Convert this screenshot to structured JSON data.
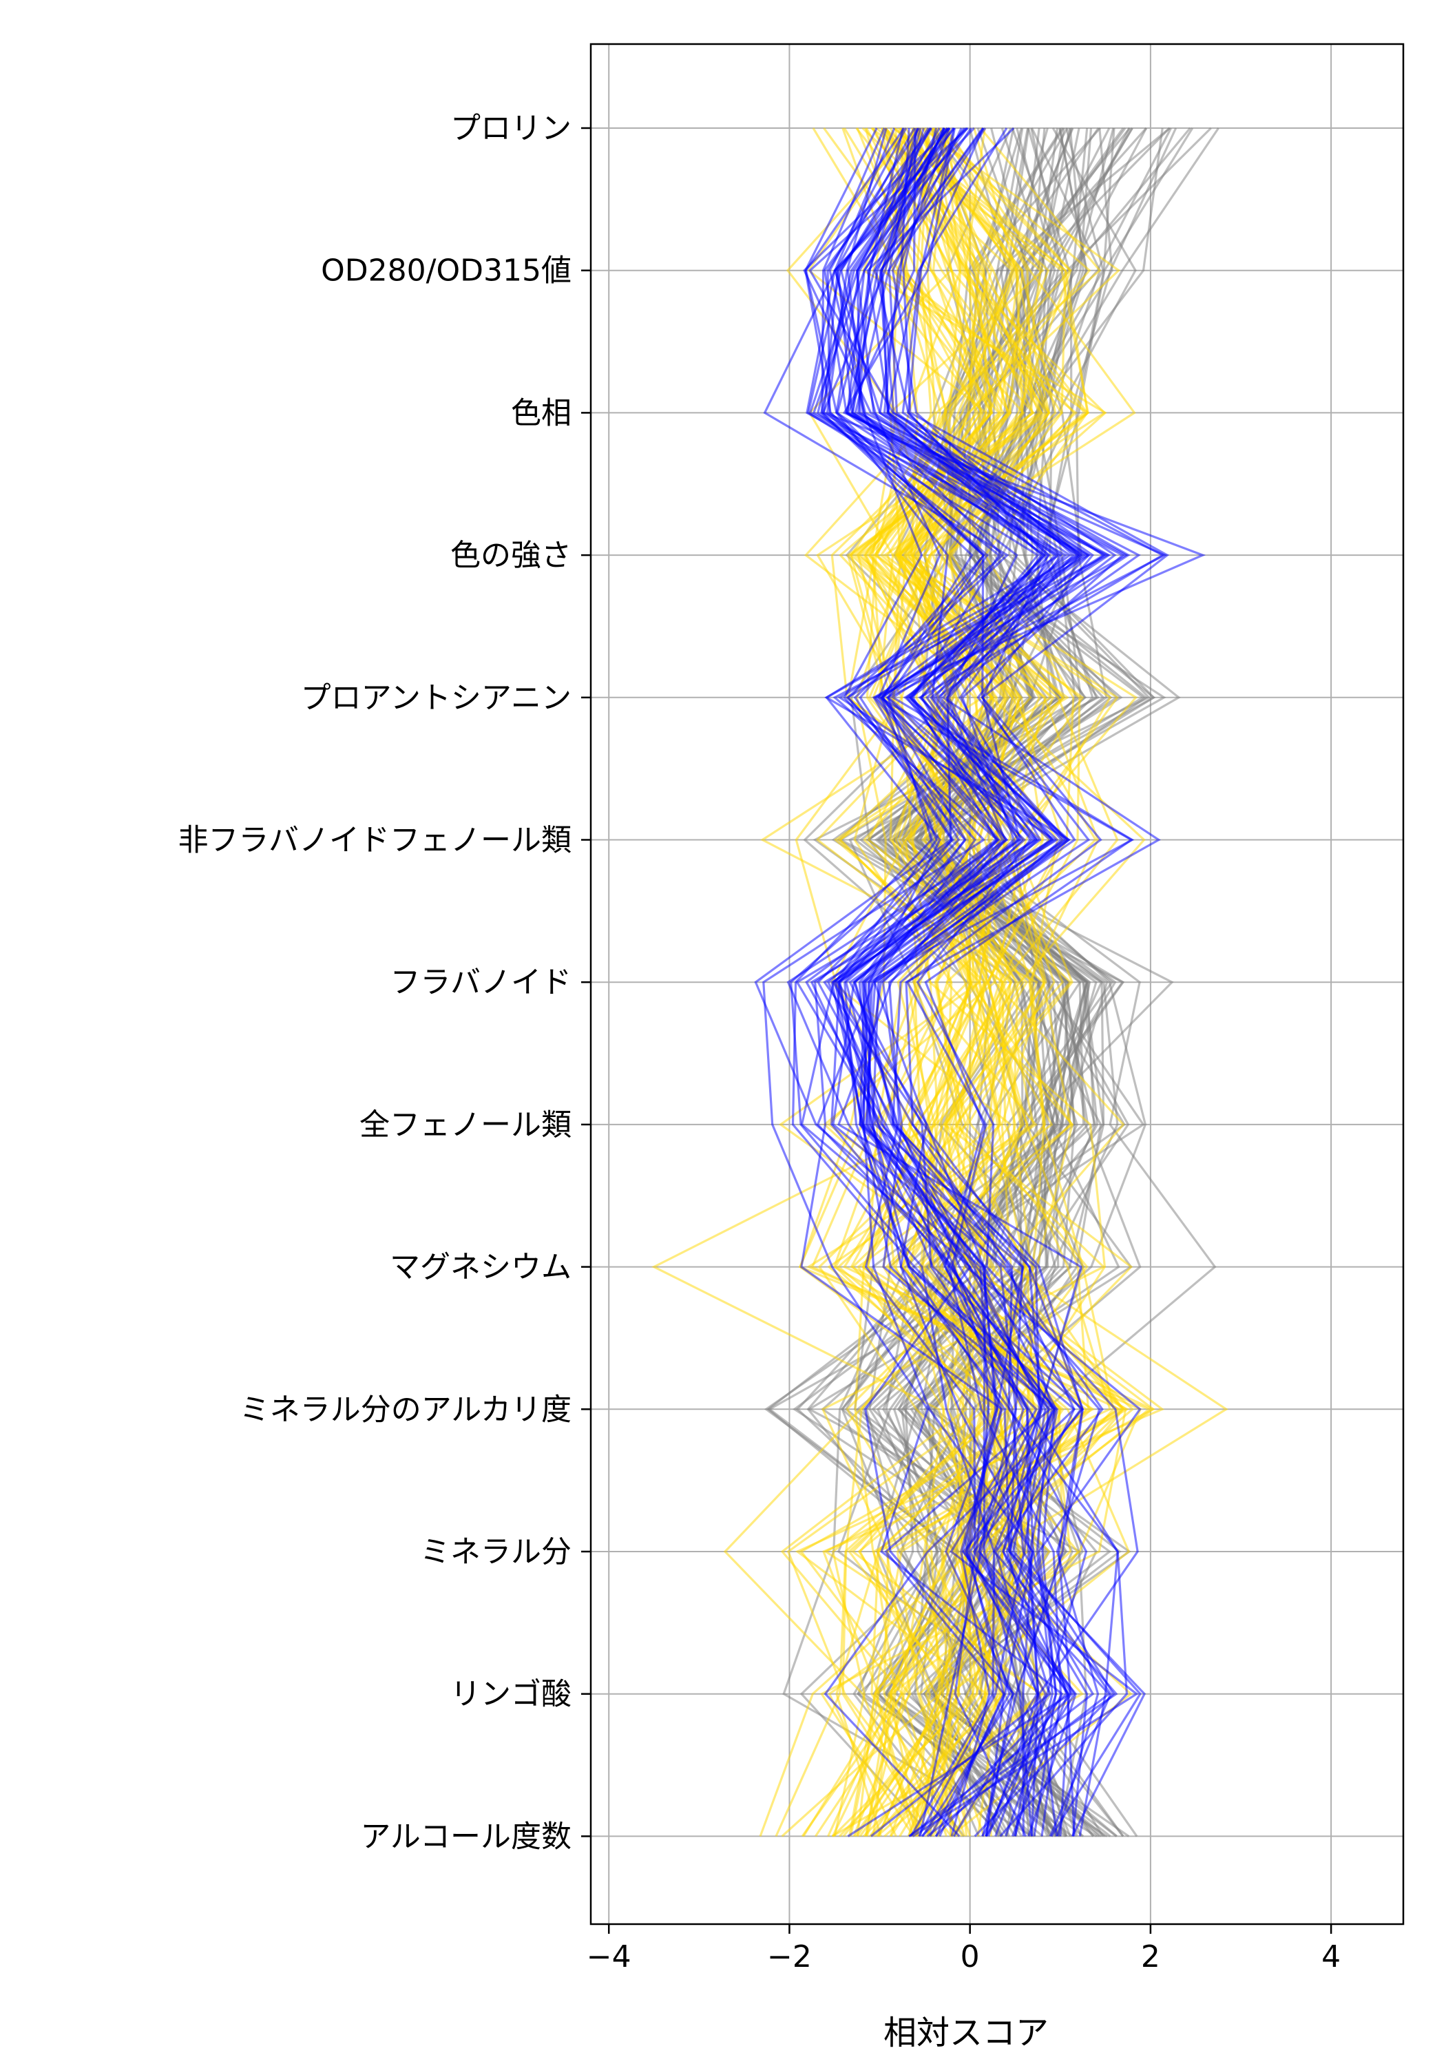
{
  "chart_data": {
    "type": "line",
    "subtype": "parallel-coordinates",
    "orientation": "horizontal",
    "xlabel": "相対スコア",
    "xlim": [
      -4.2,
      4.8
    ],
    "x_ticks": [
      -4,
      -2,
      0,
      2,
      4
    ],
    "x_tick_labels": [
      "−4",
      "−2",
      "0",
      "2",
      "4"
    ],
    "grid": true,
    "categories": [
      "プロリン",
      "OD280/OD315値",
      "色相",
      "色の強さ",
      "プロアントシアニン",
      "非フラバノイドフェノール類",
      "フラバノイド",
      "全フェノール類",
      "マグネシウム",
      "ミネラル分のアルカリ度",
      "ミネラル分",
      "リンゴ酸",
      "アルコール度数"
    ],
    "series": [
      {
        "color": "#808080",
        "line_count": 59,
        "mean": [
          1.2,
          0.8,
          0.45,
          0.2,
          0.8,
          -0.6,
          0.95,
          0.9,
          0.45,
          -0.7,
          0.3,
          -0.3,
          0.9
        ],
        "spread": [
          0.6,
          0.4,
          0.4,
          0.5,
          0.6,
          0.5,
          0.4,
          0.5,
          0.7,
          0.7,
          0.7,
          0.5,
          0.45
        ]
      },
      {
        "color": "#FFD700",
        "line_count": 71,
        "mean": [
          -0.7,
          0.05,
          0.35,
          -0.85,
          0.0,
          -0.05,
          0.1,
          -0.05,
          -0.3,
          0.4,
          -0.45,
          -0.4,
          -0.9
        ],
        "spread": [
          0.3,
          0.7,
          0.7,
          0.35,
          0.7,
          0.8,
          0.6,
          0.6,
          0.8,
          0.9,
          0.9,
          0.6,
          0.5
        ]
      },
      {
        "color": "#0000FF",
        "line_count": 48,
        "mean": [
          -0.35,
          -1.25,
          -1.2,
          1.0,
          -0.75,
          0.7,
          -1.3,
          -1.0,
          -0.05,
          0.6,
          0.25,
          1.0,
          0.15
        ],
        "spread": [
          0.35,
          0.25,
          0.3,
          0.6,
          0.35,
          0.45,
          0.25,
          0.35,
          0.6,
          0.5,
          0.45,
          0.6,
          0.5
        ]
      }
    ]
  }
}
